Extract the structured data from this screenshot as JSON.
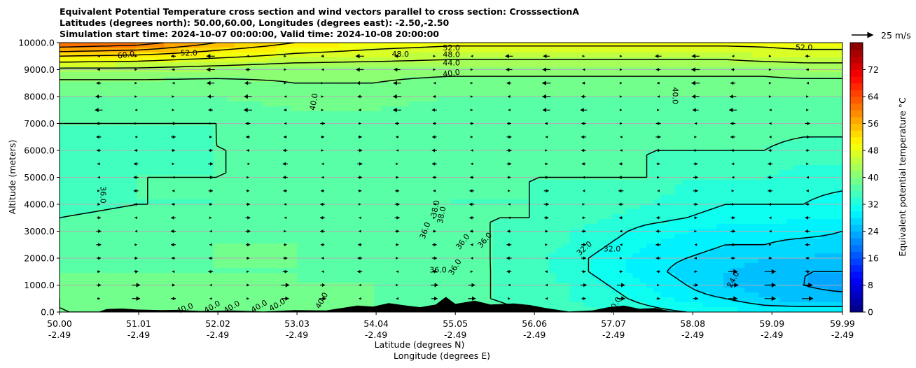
{
  "chart_data": {
    "type": "heatmap",
    "title_lines": [
      "Equivalent Potential Temperature cross section and wind vectors parallel to cross section: CrosssectionA",
      "Latitudes (degrees north): 50.00,60.00, Longitudes (degrees east): -2.50,-2.50",
      "Simulation start time: 2024-10-07 00:00:00, Valid time: 2024-10-08 20:00:00"
    ],
    "xlabel": "Latitude (degrees N)",
    "xlabel2": "Longitude (degrees E)",
    "ylabel": "Altitude (meters)",
    "xlim": [
      50.0,
      59.99
    ],
    "ylim": [
      0,
      10000
    ],
    "x_ticks": [
      {
        "value": 50.0,
        "lat": "50.00",
        "lon": "-2.49"
      },
      {
        "value": 51.01,
        "lat": "51.01",
        "lon": "-2.49"
      },
      {
        "value": 52.02,
        "lat": "52.02",
        "lon": "-2.49"
      },
      {
        "value": 53.03,
        "lat": "53.03",
        "lon": "-2.49"
      },
      {
        "value": 54.04,
        "lat": "54.04",
        "lon": "-2.49"
      },
      {
        "value": 55.05,
        "lat": "55.05",
        "lon": "-2.49"
      },
      {
        "value": 56.06,
        "lat": "56.06",
        "lon": "-2.49"
      },
      {
        "value": 57.07,
        "lat": "57.07",
        "lon": "-2.49"
      },
      {
        "value": 58.08,
        "lat": "58.08",
        "lon": "-2.49"
      },
      {
        "value": 59.09,
        "lat": "59.09",
        "lon": "-2.49"
      },
      {
        "value": 59.99,
        "lat": "59.99",
        "lon": "-2.49"
      }
    ],
    "y_ticks": [
      {
        "value": 0,
        "label": "0.0"
      },
      {
        "value": 1000,
        "label": "1000.0"
      },
      {
        "value": 2000,
        "label": "2000.0"
      },
      {
        "value": 3000,
        "label": "3000.0"
      },
      {
        "value": 4000,
        "label": "4000.0"
      },
      {
        "value": 5000,
        "label": "5000.0"
      },
      {
        "value": 6000,
        "label": "6000.0"
      },
      {
        "value": 7000,
        "label": "7000.0"
      },
      {
        "value": 8000,
        "label": "8000.0"
      },
      {
        "value": 9000,
        "label": "9000.0"
      },
      {
        "value": 10000,
        "label": "10000.0"
      }
    ],
    "grid": "horizontal",
    "colorbar": {
      "label": "Equivalent potential temperature °C",
      "range": [
        0,
        80
      ],
      "ticks": [
        {
          "value": 0,
          "label": "0"
        },
        {
          "value": 8,
          "label": "8"
        },
        {
          "value": 16,
          "label": "16"
        },
        {
          "value": 24,
          "label": "24"
        },
        {
          "value": 32,
          "label": "32"
        },
        {
          "value": 40,
          "label": "40"
        },
        {
          "value": 48,
          "label": "48"
        },
        {
          "value": 56,
          "label": "56"
        },
        {
          "value": 64,
          "label": "64"
        },
        {
          "value": 72,
          "label": "72"
        }
      ],
      "levels": 40
    },
    "wind_key": {
      "label": "25 m/s",
      "speed": 25
    },
    "theta_e_field": {
      "x": [
        50.0,
        51.0,
        52.0,
        53.0,
        54.0,
        55.0,
        55.5,
        56.0,
        56.5,
        57.0,
        57.5,
        58.0,
        58.5,
        59.0,
        59.5,
        59.99
      ],
      "y": [
        0,
        500,
        1000,
        1500,
        2000,
        2500,
        3000,
        3500,
        4000,
        5000,
        6000,
        7000,
        8000,
        8500,
        9000,
        9500,
        10000
      ],
      "values": [
        [
          40,
          40,
          40,
          39,
          38,
          37,
          37,
          36,
          35,
          34,
          33,
          32,
          31,
          30,
          30,
          30
        ],
        [
          40,
          39,
          39,
          38,
          38,
          37,
          36,
          35,
          34,
          33,
          31,
          29,
          28,
          26,
          25,
          25
        ],
        [
          39,
          39,
          39,
          38,
          38,
          37,
          36,
          35,
          34,
          32,
          30,
          28,
          26,
          25,
          24,
          23
        ],
        [
          38,
          38,
          38,
          38,
          37,
          37,
          36,
          35,
          33,
          31,
          29,
          27,
          26,
          25,
          24,
          24
        ],
        [
          37,
          37,
          38,
          38,
          37,
          36,
          36,
          35,
          33,
          31,
          29,
          28,
          27,
          26,
          26,
          25
        ],
        [
          37,
          37,
          38,
          38,
          37,
          36,
          36,
          35,
          34,
          32,
          30,
          29,
          28,
          28,
          27,
          27
        ],
        [
          36,
          37,
          37,
          37,
          37,
          36,
          36,
          35,
          34,
          33,
          31,
          30,
          29,
          29,
          29,
          28
        ],
        [
          36,
          37,
          37,
          37,
          37,
          36,
          36,
          36,
          35,
          34,
          33,
          32,
          31,
          31,
          30,
          30
        ],
        [
          35,
          36,
          36,
          37,
          37,
          36,
          36,
          36,
          35,
          35,
          34,
          33,
          32,
          32,
          32,
          31
        ],
        [
          35,
          36,
          36,
          36,
          36,
          36,
          36,
          36,
          36,
          36,
          36,
          34,
          34,
          34,
          33,
          33
        ],
        [
          35,
          35,
          36,
          36,
          36,
          36,
          36,
          36,
          36,
          36,
          36,
          36,
          36,
          36,
          35,
          35
        ],
        [
          36,
          36,
          36,
          37,
          37,
          36,
          36,
          36,
          37,
          37,
          37,
          37,
          37,
          37,
          37,
          37
        ],
        [
          38,
          38,
          38,
          39,
          39,
          38,
          38,
          38,
          38,
          38,
          38,
          38,
          38,
          38,
          38,
          38
        ],
        [
          39,
          39,
          39,
          40,
          40,
          39,
          39,
          39,
          39,
          39,
          39,
          39,
          39,
          39,
          39,
          39
        ],
        [
          43,
          43,
          42,
          41,
          41,
          41,
          41,
          41,
          41,
          41,
          41,
          41,
          41,
          41,
          42,
          42
        ],
        [
          52,
          51,
          49,
          47,
          46,
          45,
          45,
          45,
          45,
          45,
          45,
          45,
          45,
          46,
          46,
          46
        ],
        [
          64,
          62,
          56,
          52,
          50,
          49,
          49,
          49,
          49,
          49,
          49,
          49,
          49,
          49,
          50,
          50
        ]
      ]
    },
    "contour_labels": [
      {
        "text": "60.0",
        "x": 50.85,
        "y": 9530,
        "angle": -8
      },
      {
        "text": "52.0",
        "x": 51.65,
        "y": 9600,
        "angle": 0
      },
      {
        "text": "48.0",
        "x": 54.35,
        "y": 9560,
        "angle": 0
      },
      {
        "text": "52.0",
        "x": 55.0,
        "y": 9790,
        "angle": 0
      },
      {
        "text": "48.0",
        "x": 55.0,
        "y": 9550,
        "angle": 0
      },
      {
        "text": "44.0",
        "x": 55.0,
        "y": 9240,
        "angle": 0
      },
      {
        "text": "40.0",
        "x": 55.0,
        "y": 8850,
        "angle": -8
      },
      {
        "text": "52.0",
        "x": 59.5,
        "y": 9800,
        "angle": 0
      },
      {
        "text": "40.0",
        "x": 53.25,
        "y": 7800,
        "angle": -80
      },
      {
        "text": "40.0",
        "x": 57.85,
        "y": 8030,
        "angle": 90
      },
      {
        "text": "36.0",
        "x": 50.55,
        "y": 4350,
        "angle": 90
      },
      {
        "text": "38.0",
        "x": 54.8,
        "y": 3830,
        "angle": -78
      },
      {
        "text": "38.0",
        "x": 54.88,
        "y": 3600,
        "angle": -78
      },
      {
        "text": "36.0",
        "x": 54.67,
        "y": 3020,
        "angle": -70
      },
      {
        "text": "36.0",
        "x": 55.15,
        "y": 2600,
        "angle": -52
      },
      {
        "text": "36.0",
        "x": 55.43,
        "y": 2660,
        "angle": -50
      },
      {
        "text": "36.0",
        "x": 55.05,
        "y": 1660,
        "angle": -58
      },
      {
        "text": "36.0",
        "x": 54.83,
        "y": 1550,
        "angle": 0
      },
      {
        "text": "32.0",
        "x": 56.7,
        "y": 2350,
        "angle": -42
      },
      {
        "text": "32.0",
        "x": 57.05,
        "y": 2320,
        "angle": 0
      },
      {
        "text": "24.0",
        "x": 58.6,
        "y": 1200,
        "angle": -62
      },
      {
        "text": "40.0",
        "x": 53.35,
        "y": 420,
        "angle": -60
      },
      {
        "text": "40.0",
        "x": 51.6,
        "y": 120,
        "angle": -20
      },
      {
        "text": "40.0",
        "x": 51.95,
        "y": 180,
        "angle": -30
      },
      {
        "text": "40.0",
        "x": 52.2,
        "y": 180,
        "angle": -30
      },
      {
        "text": "40.0",
        "x": 52.55,
        "y": 200,
        "angle": -30
      },
      {
        "text": "40.0",
        "x": 52.78,
        "y": 250,
        "angle": -30
      },
      {
        "text": "40.0",
        "x": 57.09,
        "y": 250,
        "angle": -60
      }
    ],
    "terrain": [
      [
        50.0,
        0
      ],
      [
        50.5,
        10
      ],
      [
        50.6,
        110
      ],
      [
        50.8,
        130
      ],
      [
        51.0,
        90
      ],
      [
        51.3,
        70
      ],
      [
        51.5,
        80
      ],
      [
        51.8,
        40
      ],
      [
        52.2,
        60
      ],
      [
        52.6,
        20
      ],
      [
        53.0,
        70
      ],
      [
        53.4,
        60
      ],
      [
        53.6,
        150
      ],
      [
        53.8,
        240
      ],
      [
        54.0,
        200
      ],
      [
        54.2,
        330
      ],
      [
        54.4,
        250
      ],
      [
        54.6,
        180
      ],
      [
        54.8,
        280
      ],
      [
        54.93,
        560
      ],
      [
        55.05,
        300
      ],
      [
        55.3,
        420
      ],
      [
        55.5,
        280
      ],
      [
        55.8,
        320
      ],
      [
        56.0,
        260
      ],
      [
        56.2,
        150
      ],
      [
        56.5,
        20
      ],
      [
        56.8,
        60
      ],
      [
        57.0,
        180
      ],
      [
        57.2,
        240
      ],
      [
        57.4,
        120
      ],
      [
        57.6,
        150
      ],
      [
        57.8,
        30
      ],
      [
        58.1,
        0
      ]
    ]
  }
}
